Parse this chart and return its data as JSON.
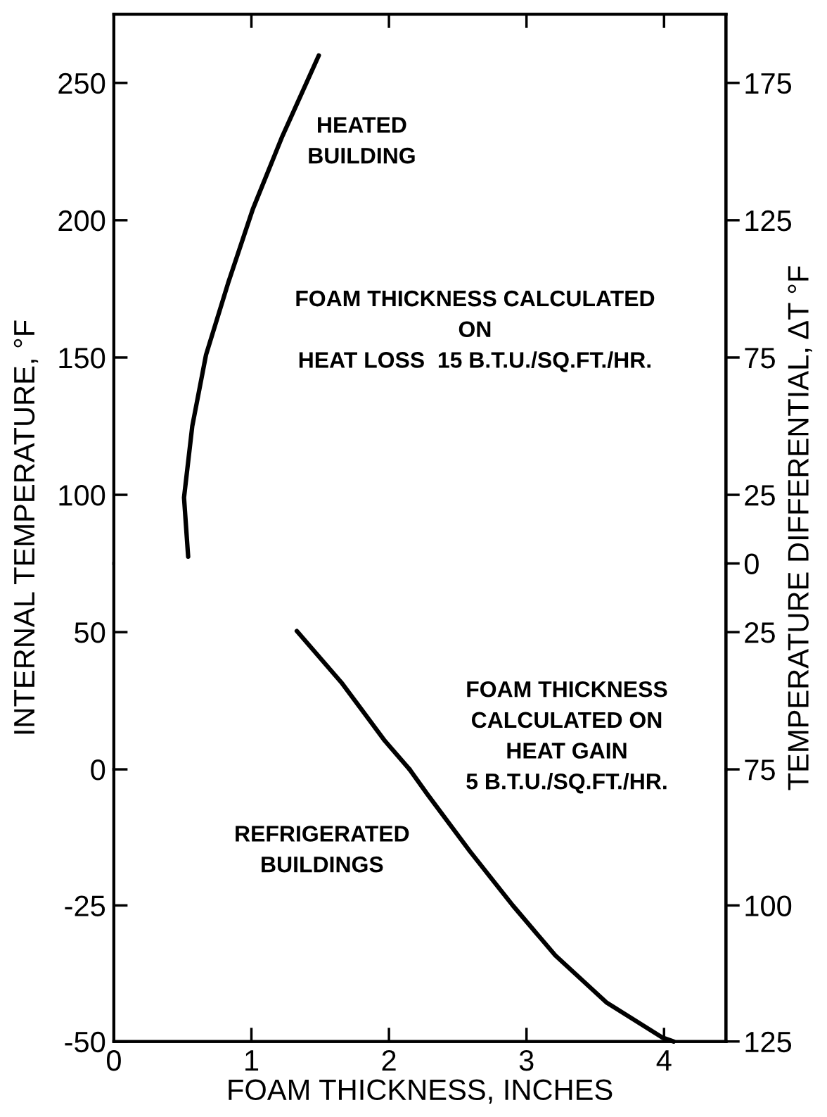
{
  "chart_data": [
    {
      "type": "line",
      "ylabel": "INTERNAL TEMPERATURE, °F",
      "y2label": "TEMPERATURE DIFFERENTIAL, ΔT °F",
      "xlim": [
        0,
        4.45
      ],
      "xticks": [
        0,
        1,
        2,
        3,
        4
      ],
      "ylim": [
        75,
        275
      ],
      "yticks": [
        100,
        150,
        200,
        250
      ],
      "y2lim": [
        0,
        200
      ],
      "y2ticks": [
        0,
        25,
        75,
        125,
        175
      ],
      "tick_labels": "y",
      "grid": false,
      "legend": false,
      "marker": "none",
      "line_style": "solid",
      "series": [
        {
          "color": "#000000",
          "x": [
            0.54,
            0.51,
            0.57,
            0.67,
            0.83,
            1.01,
            1.22,
            1.49
          ],
          "values": [
            77.5,
            99,
            125,
            151,
            177,
            204,
            230,
            260
          ]
        }
      ],
      "annotations": [
        "HEATED\nBUILDING",
        "FOAM THICKNESS CALCULATED\nON\nHEAT LOSS  15 B.T.U./SQ.FT./HR."
      ]
    },
    {
      "type": "line",
      "xlim": [
        0,
        4.45
      ],
      "xticks": [
        0,
        1,
        2,
        3,
        4
      ],
      "ylim": [
        0,
        75
      ],
      "yticks": [
        0,
        50
      ],
      "y2lim": [
        75,
        0
      ],
      "y2ticks": [
        75,
        25
      ],
      "tick_labels": "y",
      "grid": false,
      "legend": false,
      "marker": "none",
      "line_style": "solid",
      "series": [
        {
          "color": "#000000",
          "x": [
            1.33,
            1.66,
            1.97,
            2.15
          ],
          "values": [
            50.4,
            31.3,
            10.4,
            0
          ]
        }
      ],
      "annotations": [
        "FOAM THICKNESS\nCALCULATED ON\nHEAT GAIN\n5 B.T.U./SQ.FT./HR."
      ]
    },
    {
      "type": "line",
      "xlabel": "FOAM THICKNESS, INCHES",
      "xlim": [
        0,
        4.45
      ],
      "xticks": [
        0,
        1,
        2,
        3,
        4
      ],
      "ylim": [
        -50,
        0
      ],
      "yticks": [
        -50,
        -25
      ],
      "y2lim": [
        125,
        75
      ],
      "y2ticks": [
        125,
        100
      ],
      "grid": false,
      "legend": false,
      "marker": "none",
      "line_style": "solid",
      "series": [
        {
          "color": "#000000",
          "x": [
            2.15,
            2.28,
            2.59,
            2.9,
            3.21,
            3.58,
            3.99,
            4.07
          ],
          "values": [
            0,
            -4.6,
            -15.1,
            -25,
            -34.2,
            -42.8,
            -49.3,
            -50
          ]
        }
      ],
      "annotations": [
        "REFRIGERATED\nBUILDINGS"
      ]
    }
  ]
}
